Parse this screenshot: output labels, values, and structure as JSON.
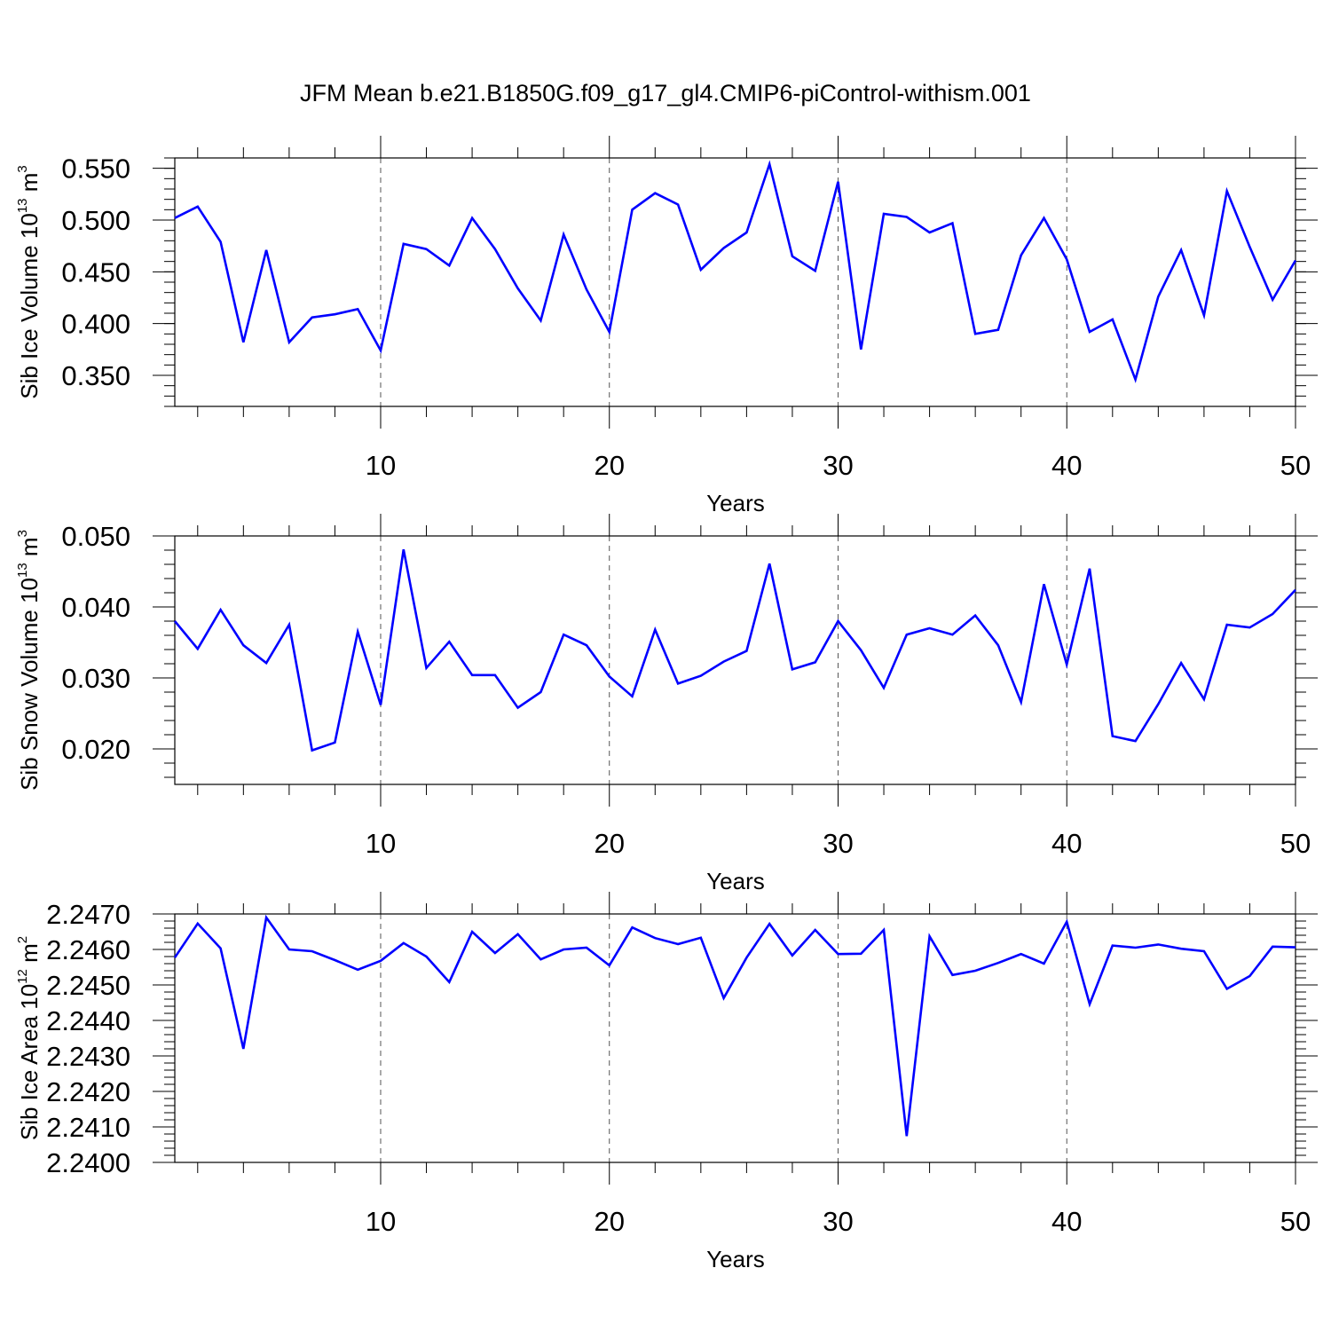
{
  "title": "JFM Mean b.e21.B1850G.f09_g17_gl4.CMIP6-piControl-withism.001",
  "colors": {
    "line": "#0000ff",
    "axis": "#000000",
    "grid": "#555555"
  },
  "chart_data": [
    {
      "type": "line",
      "title": "",
      "ylabel": {
        "base": "Sib Ice Volume 10",
        "exp": "13",
        "unit": " m",
        "unit_exp": "3"
      },
      "xlabel": "Years",
      "xlim": [
        1,
        50
      ],
      "ylim": [
        0.32,
        0.56
      ],
      "xticks": [
        "10",
        "20",
        "30",
        "40",
        "50"
      ],
      "yticks": [
        "0.550",
        "0.500",
        "0.450",
        "0.400",
        "0.350"
      ],
      "series": [
        {
          "name": "Sib Ice Volume",
          "values": [
            0.502,
            0.513,
            0.479,
            0.382,
            0.471,
            0.382,
            0.406,
            0.409,
            0.414,
            0.374,
            0.477,
            0.472,
            0.456,
            0.502,
            0.472,
            0.434,
            0.403,
            0.486,
            0.433,
            0.392,
            0.51,
            0.526,
            0.515,
            0.452,
            0.473,
            0.488,
            0.554,
            0.465,
            0.451,
            0.537,
            0.375,
            0.506,
            0.503,
            0.488,
            0.497,
            0.39,
            0.394,
            0.466,
            0.502,
            0.462,
            0.392,
            0.404,
            0.346,
            0.426,
            0.471,
            0.408,
            0.528,
            0.474,
            0.423,
            0.461
          ]
        }
      ]
    },
    {
      "type": "line",
      "title": "",
      "ylabel": {
        "base": "Sib Snow Volume 10",
        "exp": "13",
        "unit": " m",
        "unit_exp": "3"
      },
      "xlabel": "Years",
      "xlim": [
        1,
        50
      ],
      "ylim": [
        0.015,
        0.05
      ],
      "xticks": [
        "10",
        "20",
        "30",
        "40",
        "50"
      ],
      "yticks": [
        "0.050",
        "0.040",
        "0.030",
        "0.020"
      ],
      "series": [
        {
          "name": "Sib Snow Volume",
          "values": [
            0.038,
            0.0341,
            0.0396,
            0.0346,
            0.0321,
            0.0375,
            0.0198,
            0.0209,
            0.0365,
            0.0262,
            0.0481,
            0.0314,
            0.0351,
            0.0304,
            0.0304,
            0.0258,
            0.028,
            0.0361,
            0.0346,
            0.0302,
            0.0274,
            0.0368,
            0.0292,
            0.0303,
            0.0323,
            0.0338,
            0.0461,
            0.0312,
            0.0322,
            0.038,
            0.0339,
            0.0286,
            0.0361,
            0.037,
            0.0361,
            0.0388,
            0.0346,
            0.0266,
            0.0432,
            0.0319,
            0.0454,
            0.0218,
            0.0211,
            0.0263,
            0.0321,
            0.027,
            0.0375,
            0.0371,
            0.039,
            0.0424
          ]
        }
      ]
    },
    {
      "type": "line",
      "title": "",
      "ylabel": {
        "base": "Sib Ice Area 10",
        "exp": "12",
        "unit": " m",
        "unit_exp": "2"
      },
      "xlabel": "Years",
      "xlim": [
        1,
        50
      ],
      "ylim": [
        2.24,
        2.247
      ],
      "xticks": [
        "10",
        "20",
        "30",
        "40",
        "50"
      ],
      "yticks": [
        "2.2470",
        "2.2460",
        "2.2450",
        "2.2440",
        "2.2430",
        "2.2420",
        "2.2410",
        "2.2400"
      ],
      "series": [
        {
          "name": "Sib Ice Area",
          "values": [
            2.24577,
            2.24673,
            2.24603,
            2.2432,
            2.2469,
            2.246,
            2.24595,
            2.2457,
            2.24543,
            2.24568,
            2.24618,
            2.2458,
            2.24508,
            2.2465,
            2.2459,
            2.24643,
            2.24572,
            2.246,
            2.24605,
            2.24555,
            2.24662,
            2.24632,
            2.24615,
            2.24633,
            2.24463,
            2.24577,
            2.24672,
            2.24583,
            2.24655,
            2.24587,
            2.24588,
            2.24655,
            2.24074,
            2.24637,
            2.24528,
            2.2454,
            2.24562,
            2.24587,
            2.2456,
            2.24678,
            2.24446,
            2.24611,
            2.24605,
            2.24614,
            2.24602,
            2.24595,
            2.24489,
            2.24525,
            2.24608,
            2.24606
          ]
        }
      ]
    }
  ]
}
